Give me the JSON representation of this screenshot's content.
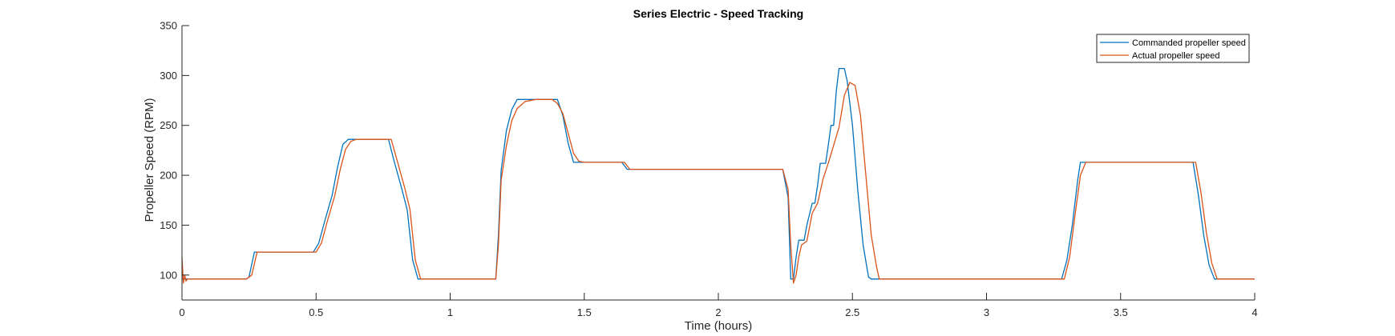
{
  "chart_data": {
    "type": "line",
    "title": "Series Electric - Speed Tracking",
    "xlabel": "Time (hours)",
    "ylabel": "Propeller Speed (RPM)",
    "xlim": [
      0,
      4
    ],
    "ylim": [
      75,
      350
    ],
    "xticks": [
      0,
      0.5,
      1,
      1.5,
      2,
      2.5,
      3,
      3.5,
      4
    ],
    "xtick_labels": [
      "0",
      "0.5",
      "1",
      "1.5",
      "2",
      "2.5",
      "3",
      "3.5",
      "4"
    ],
    "yticks": [
      100,
      150,
      200,
      250,
      300,
      350
    ],
    "ytick_labels": [
      "100",
      "150",
      "200",
      "250",
      "300",
      "350"
    ],
    "grid": false,
    "legend_position": "top-right",
    "series": [
      {
        "name": "Commanded propeller speed",
        "color": "#0072BD",
        "points": [
          [
            0,
            96
          ],
          [
            0.24,
            96
          ],
          [
            0.25,
            98
          ],
          [
            0.27,
            123
          ],
          [
            0.49,
            123
          ],
          [
            0.51,
            132
          ],
          [
            0.53,
            152
          ],
          [
            0.56,
            180
          ],
          [
            0.58,
            208
          ],
          [
            0.6,
            231
          ],
          [
            0.62,
            236
          ],
          [
            0.77,
            236
          ],
          [
            0.79,
            215
          ],
          [
            0.82,
            186
          ],
          [
            0.84,
            165
          ],
          [
            0.86,
            115
          ],
          [
            0.88,
            96
          ],
          [
            1.17,
            96
          ],
          [
            1.18,
            140
          ],
          [
            1.19,
            205
          ],
          [
            1.21,
            245
          ],
          [
            1.23,
            266
          ],
          [
            1.25,
            276
          ],
          [
            1.4,
            276
          ],
          [
            1.42,
            260
          ],
          [
            1.44,
            232
          ],
          [
            1.46,
            213
          ],
          [
            1.64,
            213
          ],
          [
            1.66,
            206
          ],
          [
            2.24,
            206
          ],
          [
            2.26,
            178
          ],
          [
            2.27,
            96
          ],
          [
            2.28,
            96
          ],
          [
            2.29,
            118
          ],
          [
            2.3,
            135
          ],
          [
            2.32,
            135
          ],
          [
            2.33,
            150
          ],
          [
            2.35,
            172
          ],
          [
            2.36,
            172
          ],
          [
            2.37,
            190
          ],
          [
            2.38,
            212
          ],
          [
            2.4,
            212
          ],
          [
            2.41,
            230
          ],
          [
            2.42,
            250
          ],
          [
            2.43,
            250
          ],
          [
            2.44,
            285
          ],
          [
            2.45,
            307
          ],
          [
            2.47,
            307
          ],
          [
            2.48,
            295
          ],
          [
            2.5,
            250
          ],
          [
            2.52,
            185
          ],
          [
            2.54,
            130
          ],
          [
            2.56,
            98
          ],
          [
            2.57,
            96
          ],
          [
            3.28,
            96
          ],
          [
            3.3,
            115
          ],
          [
            3.32,
            150
          ],
          [
            3.34,
            195
          ],
          [
            3.35,
            213
          ],
          [
            3.77,
            213
          ],
          [
            3.79,
            180
          ],
          [
            3.81,
            140
          ],
          [
            3.83,
            110
          ],
          [
            3.85,
            96
          ],
          [
            4,
            96
          ]
        ]
      },
      {
        "name": "Actual propeller speed",
        "color": "#D95319",
        "points": [
          [
            0,
            118
          ],
          [
            0.005,
            92
          ],
          [
            0.01,
            100
          ],
          [
            0.015,
            94
          ],
          [
            0.02,
            96
          ],
          [
            0.24,
            96
          ],
          [
            0.26,
            100
          ],
          [
            0.28,
            123
          ],
          [
            0.5,
            123
          ],
          [
            0.52,
            132
          ],
          [
            0.54,
            152
          ],
          [
            0.57,
            180
          ],
          [
            0.59,
            206
          ],
          [
            0.61,
            226
          ],
          [
            0.63,
            234
          ],
          [
            0.65,
            236
          ],
          [
            0.78,
            236
          ],
          [
            0.8,
            217
          ],
          [
            0.83,
            188
          ],
          [
            0.85,
            166
          ],
          [
            0.87,
            115
          ],
          [
            0.89,
            96
          ],
          [
            1.17,
            96
          ],
          [
            1.18,
            130
          ],
          [
            1.19,
            195
          ],
          [
            1.21,
            230
          ],
          [
            1.23,
            255
          ],
          [
            1.25,
            267
          ],
          [
            1.28,
            274
          ],
          [
            1.32,
            276
          ],
          [
            1.38,
            276
          ],
          [
            1.4,
            272
          ],
          [
            1.42,
            262
          ],
          [
            1.44,
            242
          ],
          [
            1.46,
            222
          ],
          [
            1.48,
            214
          ],
          [
            1.5,
            213
          ],
          [
            1.65,
            213
          ],
          [
            1.67,
            206
          ],
          [
            2.24,
            206
          ],
          [
            2.26,
            186
          ],
          [
            2.27,
            130
          ],
          [
            2.28,
            92
          ],
          [
            2.29,
            100
          ],
          [
            2.3,
            118
          ],
          [
            2.31,
            130
          ],
          [
            2.33,
            134
          ],
          [
            2.35,
            162
          ],
          [
            2.37,
            172
          ],
          [
            2.39,
            196
          ],
          [
            2.41,
            212
          ],
          [
            2.43,
            230
          ],
          [
            2.45,
            248
          ],
          [
            2.47,
            280
          ],
          [
            2.49,
            293
          ],
          [
            2.51,
            290
          ],
          [
            2.53,
            260
          ],
          [
            2.55,
            200
          ],
          [
            2.57,
            140
          ],
          [
            2.59,
            108
          ],
          [
            2.6,
            96
          ],
          [
            3.29,
            96
          ],
          [
            3.31,
            118
          ],
          [
            3.33,
            160
          ],
          [
            3.35,
            200
          ],
          [
            3.37,
            213
          ],
          [
            3.78,
            213
          ],
          [
            3.8,
            182
          ],
          [
            3.82,
            142
          ],
          [
            3.84,
            112
          ],
          [
            3.86,
            96
          ],
          [
            4,
            96
          ]
        ]
      }
    ]
  }
}
